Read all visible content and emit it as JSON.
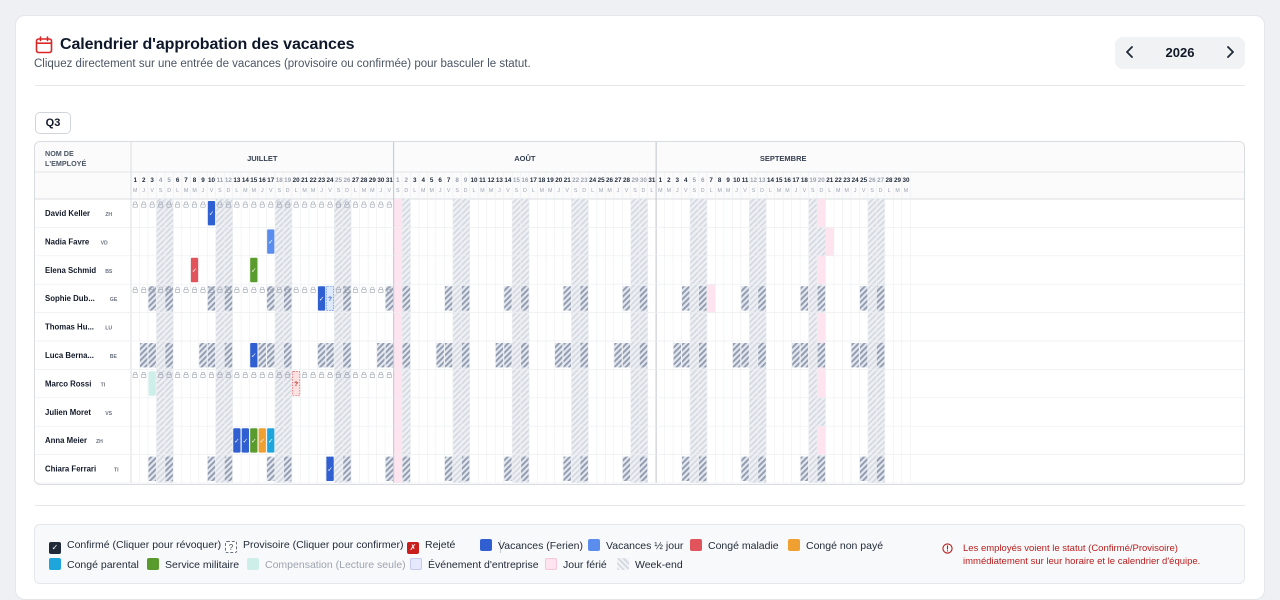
{
  "header": {
    "title": "Calendrier d'approbation des vacances",
    "subtitle": "Cliquez directement sur une entrée de vacances (provisoire ou confirmée) pour basculer le statut.",
    "year": "2026",
    "prev_icon": "chevron-left-icon",
    "next_icon": "chevron-right-icon",
    "calendar_icon_color": "#dc2626"
  },
  "quarter_label": "Q3",
  "grid": {
    "name_header": "NOM DE\nL'EMPLOYÉ",
    "provisional_mark": "?",
    "confirmed_mark": "✓",
    "months": [
      {
        "name": "JUILLET",
        "days": 31,
        "weekday_letters": [
          "M",
          "J",
          "V",
          "S",
          "D",
          "L",
          "M",
          "M",
          "J",
          "V",
          "S",
          "D",
          "L",
          "M",
          "M",
          "J",
          "V",
          "S",
          "D",
          "L",
          "M",
          "M",
          "J",
          "V",
          "S",
          "D",
          "L",
          "M",
          "M",
          "J",
          "V"
        ]
      },
      {
        "name": "AOÛT",
        "days": 31,
        "weekday_letters": [
          "S",
          "D",
          "L",
          "M",
          "M",
          "J",
          "V",
          "S",
          "D",
          "L",
          "M",
          "M",
          "J",
          "V",
          "S",
          "D",
          "L",
          "M",
          "M",
          "J",
          "V",
          "S",
          "D",
          "L",
          "M",
          "M",
          "J",
          "V",
          "S",
          "D",
          "L"
        ]
      },
      {
        "name": "SEPTEMBRE",
        "days": 30,
        "weekday_letters": [
          "M",
          "M",
          "J",
          "V",
          "S",
          "D",
          "L",
          "M",
          "M",
          "J",
          "V",
          "S",
          "D",
          "L",
          "M",
          "M",
          "J",
          "V",
          "S",
          "D",
          "L",
          "M",
          "M",
          "J",
          "V",
          "S",
          "D",
          "L",
          "M",
          "M"
        ]
      }
    ],
    "holidays": [
      {
        "month": 1,
        "day": 1
      },
      {
        "month": 2,
        "day": 20,
        "rows": [
          0,
          2,
          4,
          5,
          6,
          8
        ]
      },
      {
        "month": 2,
        "day": 21,
        "rows": [
          1
        ]
      },
      {
        "month": 2,
        "day": 7,
        "rows": [
          3
        ]
      }
    ],
    "employees": [
      {
        "name": "David Keller",
        "canton": "ZH",
        "lock_icons": true,
        "part_time_days": [],
        "entries": [
          {
            "month": 0,
            "day": 10,
            "type": "vacation",
            "status": "confirmed"
          }
        ]
      },
      {
        "name": "Nadia Favre",
        "canton": "VD",
        "lock_icons": false,
        "part_time_days": [],
        "entries": [
          {
            "month": 0,
            "day": 17,
            "type": "half_day",
            "status": "confirmed"
          }
        ]
      },
      {
        "name": "Elena Schmid",
        "canton": "BS",
        "lock_icons": false,
        "part_time_days": [],
        "entries": [
          {
            "month": 0,
            "day": 8,
            "type": "sick",
            "status": "confirmed"
          },
          {
            "month": 0,
            "day": 15,
            "type": "military",
            "status": "confirmed"
          }
        ]
      },
      {
        "name": "Sophie Dub...",
        "canton": "GE",
        "lock_icons": true,
        "part_time_days": [
          "V"
        ],
        "entries": [
          {
            "month": 0,
            "day": 23,
            "type": "vacation",
            "status": "confirmed"
          },
          {
            "month": 0,
            "day": 24,
            "type": "half_day",
            "status": "provisional"
          }
        ]
      },
      {
        "name": "Thomas Hu...",
        "canton": "LU",
        "lock_icons": false,
        "part_time_days": [],
        "entries": []
      },
      {
        "name": "Luca Berna...",
        "canton": "BE",
        "lock_icons": false,
        "part_time_days": [
          "J",
          "V"
        ],
        "entries": [
          {
            "month": 0,
            "day": 15,
            "type": "vacation",
            "status": "confirmed"
          }
        ]
      },
      {
        "name": "Marco Rossi",
        "canton": "TI",
        "lock_icons": true,
        "part_time_days": [],
        "entries": [
          {
            "month": 0,
            "day": 3,
            "type": "compensation",
            "status": "confirmed"
          },
          {
            "month": 0,
            "day": 20,
            "type": "sick",
            "status": "provisional"
          }
        ]
      },
      {
        "name": "Julien Moret",
        "canton": "VS",
        "lock_icons": false,
        "part_time_days": [],
        "entries": []
      },
      {
        "name": "Anna Meier",
        "canton": "ZH",
        "lock_icons": false,
        "part_time_days": [],
        "entries": [
          {
            "month": 0,
            "day": 13,
            "type": "vacation",
            "status": "confirmed"
          },
          {
            "month": 0,
            "day": 14,
            "type": "vacation",
            "status": "confirmed"
          },
          {
            "month": 0,
            "day": 15,
            "type": "military",
            "status": "confirmed"
          },
          {
            "month": 0,
            "day": 16,
            "type": "unpaid",
            "status": "confirmed"
          },
          {
            "month": 0,
            "day": 17,
            "type": "parental",
            "status": "confirmed"
          }
        ]
      },
      {
        "name": "Chiara Ferrari",
        "canton": "TI",
        "lock_icons": false,
        "part_time_days": [
          "V"
        ],
        "entries": [
          {
            "month": 0,
            "day": 24,
            "type": "vacation",
            "status": "confirmed"
          }
        ]
      }
    ]
  },
  "type_colors": {
    "vacation": "#2f5fd0",
    "half_day": "#5b8def",
    "sick": "#e2545b",
    "unpaid": "#f0a030",
    "parental": "#1ea6dc",
    "military": "#5a9b2e",
    "compensation": "#cdeee9",
    "event": "#e6e8fb",
    "holiday": "#fde4ef"
  },
  "legend": {
    "confirmed": "Confirmé (Cliquer pour révoquer)",
    "provisional": "Provisoire (Cliquer pour confirmer)",
    "rejected": "Rejeté",
    "vacation": "Vacances (Ferien)",
    "half_day": "Vacances ½ jour",
    "sick": "Congé maladie",
    "unpaid": "Congé non payé",
    "parental": "Congé parental",
    "military": "Service militaire",
    "compensation": "Compensation (Lecture seule)",
    "event": "Événement d'entreprise",
    "holiday": "Jour férié",
    "weekend": "Week-end"
  },
  "notice": "Les employés voient le statut (Confirmé/Provisoire) immédiatement sur leur horaire et le calendrier d'équipe."
}
